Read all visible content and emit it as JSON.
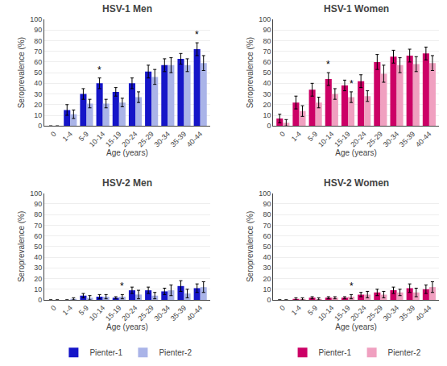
{
  "chart_data": [
    {
      "type": "bar",
      "title": "HSV-1 Men",
      "categories": [
        "0",
        "1-4",
        "5-9",
        "10-14",
        "15-19",
        "20-24",
        "25-29",
        "30-34",
        "35-39",
        "40-44"
      ],
      "xlabel": "Age (years)",
      "ylabel": "Seroprevalence (%)",
      "ylim": [
        0,
        100
      ],
      "yticks": [
        0,
        10,
        20,
        30,
        40,
        50,
        60,
        70,
        80,
        90,
        100
      ],
      "grid": true,
      "legend": "bottom",
      "series": [
        {
          "name": "Pienter-1",
          "color": "#1515c8",
          "values": [
            0,
            15,
            30,
            40,
            32,
            40,
            51,
            57,
            63,
            72
          ],
          "error": [
            0,
            5,
            5,
            5,
            4,
            5,
            6,
            6,
            5,
            6
          ]
        },
        {
          "name": "Pienter-2",
          "color": "#aab4e8",
          "values": [
            0,
            11,
            21,
            21,
            22,
            27,
            46,
            57,
            57,
            59
          ],
          "error": [
            0,
            4,
            4,
            4,
            4,
            5,
            7,
            7,
            6,
            7
          ]
        }
      ],
      "annotations": [
        {
          "text": "*",
          "category": "10-14",
          "series": "Pienter-1"
        },
        {
          "text": "*",
          "category": "40-44",
          "series": "Pienter-1"
        }
      ]
    },
    {
      "type": "bar",
      "title": "HSV-1 Women",
      "categories": [
        "0",
        "1-4",
        "5-9",
        "10-14",
        "15-19",
        "20-24",
        "25-29",
        "30-34",
        "35-39",
        "40-44"
      ],
      "xlabel": "Age (years)",
      "ylabel": "Seroprevalence (%)",
      "ylim": [
        0,
        100
      ],
      "yticks": [
        0,
        10,
        20,
        30,
        40,
        50,
        60,
        70,
        80,
        90,
        100
      ],
      "grid": true,
      "legend": "bottom",
      "series": [
        {
          "name": "Pienter-1",
          "color": "#cc0066",
          "values": [
            7,
            22,
            34,
            44,
            38,
            42,
            60,
            65,
            66,
            68
          ],
          "error": [
            4,
            6,
            6,
            6,
            5,
            6,
            7,
            6,
            6,
            6
          ]
        },
        {
          "name": "Pienter-2",
          "color": "#f0a0c0",
          "values": [
            3,
            14,
            22,
            30,
            27,
            28,
            49,
            57,
            58,
            59
          ],
          "error": [
            3,
            5,
            5,
            5,
            5,
            5,
            8,
            7,
            7,
            7
          ]
        }
      ],
      "annotations": [
        {
          "text": "*",
          "category": "10-14",
          "series": "Pienter-1"
        },
        {
          "text": "*",
          "category": "15-19",
          "series": "Pienter-2"
        }
      ]
    },
    {
      "type": "bar",
      "title": "HSV-2 Men",
      "categories": [
        "0",
        "1-4",
        "5-9",
        "10-14",
        "15-19",
        "20-24",
        "25-29",
        "30-34",
        "35-39",
        "40-44"
      ],
      "xlabel": "Age (years)",
      "ylabel": "Seroprevalence (%)",
      "ylim": [
        0,
        100
      ],
      "yticks": [
        0,
        10,
        20,
        30,
        40,
        50,
        60,
        70,
        80,
        90,
        100
      ],
      "grid": true,
      "legend": "bottom",
      "series": [
        {
          "name": "Pienter-1",
          "color": "#1515c8",
          "values": [
            0,
            0,
            4,
            3,
            2,
            9,
            9,
            8,
            13,
            11
          ],
          "error": [
            0,
            0,
            2,
            2,
            1,
            3,
            3,
            3,
            5,
            4
          ]
        },
        {
          "name": "Pienter-2",
          "color": "#aab4e8",
          "values": [
            0,
            1,
            2,
            3,
            3,
            5,
            4,
            9,
            6,
            12
          ],
          "error": [
            0,
            1,
            2,
            2,
            2,
            4,
            3,
            5,
            4,
            5
          ]
        }
      ],
      "annotations": [
        {
          "text": "*",
          "category": "15-19",
          "series": "Pienter-2"
        }
      ]
    },
    {
      "type": "bar",
      "title": "HSV-2 Women",
      "categories": [
        "0",
        "1-4",
        "5-9",
        "10-14",
        "15-19",
        "20-24",
        "25-29",
        "30-34",
        "35-39",
        "40-44"
      ],
      "xlabel": "Age (years)",
      "ylabel": "Seroprevalence (%)",
      "ylim": [
        0,
        100
      ],
      "yticks": [
        0,
        10,
        20,
        30,
        40,
        50,
        60,
        70,
        80,
        90,
        100
      ],
      "grid": true,
      "legend": "bottom",
      "series": [
        {
          "name": "Pienter-1",
          "color": "#cc0066",
          "values": [
            0,
            1,
            2,
            2,
            2,
            5,
            7,
            9,
            11,
            10
          ],
          "error": [
            0,
            1,
            1,
            1,
            1,
            2,
            3,
            3,
            4,
            4
          ]
        },
        {
          "name": "Pienter-2",
          "color": "#f0a0c0",
          "values": [
            0,
            1,
            1,
            2,
            3,
            5,
            5,
            7,
            7,
            12
          ],
          "error": [
            0,
            1,
            1,
            1,
            2,
            3,
            3,
            3,
            4,
            5
          ]
        }
      ],
      "annotations": [
        {
          "text": "*",
          "category": "15-19",
          "series": "Pienter-2"
        }
      ]
    }
  ]
}
